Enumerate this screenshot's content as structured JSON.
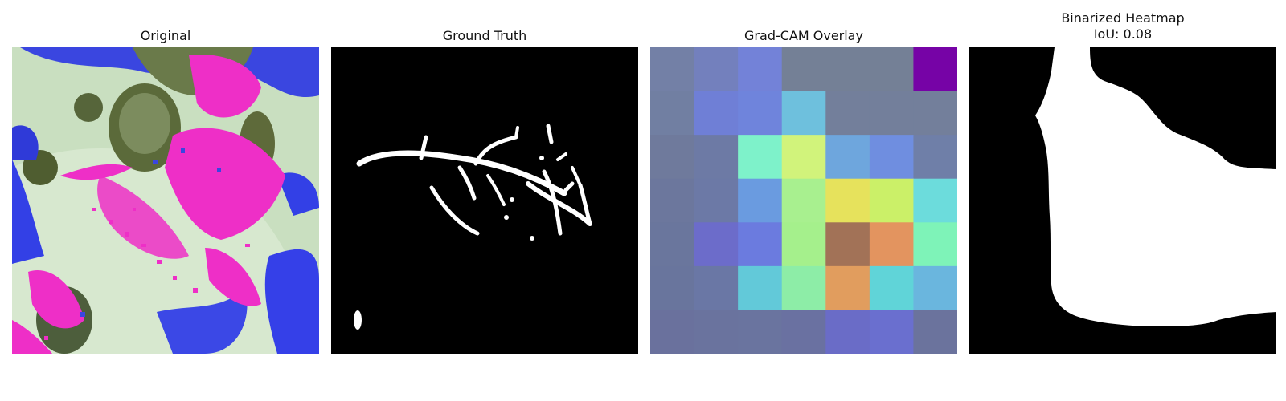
{
  "panels": [
    {
      "title": "Original"
    },
    {
      "title": "Ground Truth"
    },
    {
      "title": "Grad-CAM Overlay"
    },
    {
      "title": "Binarized Heatmap",
      "subtitle": "IoU: 0.08"
    }
  ],
  "gradcam_colors": [
    [
      "#7380a6",
      "#7380bd",
      "#7382d8",
      "#748096",
      "#748096",
      "#748096",
      "#7603a6"
    ],
    [
      "#717fa2",
      "#6f7fd6",
      "#6f84dc",
      "#6ec0dd",
      "#737f9b",
      "#737f9b",
      "#737f9b"
    ],
    [
      "#6f7a9c",
      "#6d7aa5",
      "#7ef2ca",
      "#d1f37b",
      "#6ea6dd",
      "#6f8ee0",
      "#6f7fa8"
    ],
    [
      "#6c779d",
      "#6c79a6",
      "#6a9be0",
      "#a8f08f",
      "#e6e25c",
      "#cbf068",
      "#6cdcdc"
    ],
    [
      "#6a769d",
      "#6c6cca",
      "#6b7bdf",
      "#a5f08c",
      "#a27257",
      "#e3945f",
      "#7ef3b8"
    ],
    [
      "#69759d",
      "#6a77a5",
      "#62c9d9",
      "#8deda7",
      "#e19d5e",
      "#60d4d8",
      "#6ab6de"
    ],
    [
      "#6a719d",
      "#6a739e",
      "#6a749f",
      "#6a71a1",
      "#6a6cc7",
      "#6a6fcf",
      "#6b739d"
    ]
  ],
  "colors": {
    "background": "#ffffff",
    "mask_fg": "#ffffff",
    "mask_bg": "#000000",
    "magenta": "#ee2fc7",
    "blue": "#3340e6",
    "olive": "#5b6a3a",
    "pale_green": "#c9dfc0"
  }
}
